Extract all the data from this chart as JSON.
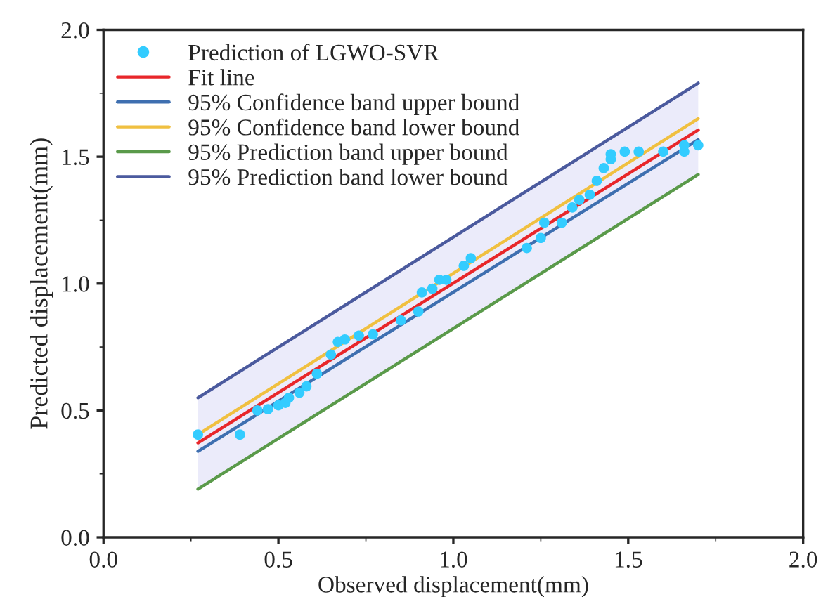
{
  "chart_data": {
    "type": "scatter",
    "xlabel": "Observed displacement(mm)",
    "ylabel": "Predicted displacement(mm)",
    "xlim": [
      0,
      2
    ],
    "ylim": [
      0,
      2
    ],
    "xticks": [
      {
        "value": 0,
        "label": "0.0"
      },
      {
        "value": 0.5,
        "label": "0.5"
      },
      {
        "value": 1,
        "label": "1.0"
      },
      {
        "value": 1.5,
        "label": "1.5"
      },
      {
        "value": 2,
        "label": "2.0"
      }
    ],
    "yticks": [
      {
        "value": 0,
        "label": "0.0"
      },
      {
        "value": 0.5,
        "label": "0.5"
      },
      {
        "value": 1,
        "label": "1.0"
      },
      {
        "value": 1.5,
        "label": "1.5"
      },
      {
        "value": 2,
        "label": "2.0"
      }
    ],
    "grid": false,
    "legend": "top left",
    "series": [
      {
        "name": "Prediction of LGWO-SVR",
        "color": "#33ccff",
        "marker": "circle",
        "x": [
          0.27,
          0.39,
          0.44,
          0.47,
          0.5,
          0.52,
          0.53,
          0.56,
          0.58,
          0.61,
          0.65,
          0.67,
          0.69,
          0.73,
          0.77,
          0.85,
          0.9,
          0.91,
          0.94,
          0.96,
          0.98,
          1.03,
          1.05,
          1.21,
          1.25,
          1.26,
          1.31,
          1.34,
          1.36,
          1.39,
          1.41,
          1.43,
          1.45,
          1.45,
          1.49,
          1.53,
          1.6,
          1.66,
          1.66,
          1.7
        ],
        "values": [
          0.405,
          0.405,
          0.5,
          0.505,
          0.52,
          0.53,
          0.55,
          0.57,
          0.595,
          0.645,
          0.72,
          0.77,
          0.78,
          0.795,
          0.8,
          0.855,
          0.89,
          0.965,
          0.98,
          1.015,
          1.015,
          1.07,
          1.1,
          1.14,
          1.18,
          1.24,
          1.24,
          1.3,
          1.33,
          1.35,
          1.405,
          1.455,
          1.49,
          1.51,
          1.52,
          1.52,
          1.52,
          1.52,
          1.545,
          1.545
        ]
      },
      {
        "type": "line",
        "name": "Fit line",
        "color": "#e8262a",
        "x": [
          0.27,
          1.7
        ],
        "values": [
          0.372,
          1.605
        ],
        "lower": [
          0.19,
          1.43
        ],
        "upper": [
          0.55,
          1.79
        ]
      },
      {
        "type": "line",
        "name": "95% Confidence band upper bound",
        "color": "#3e6fb0",
        "x": [
          0.27,
          1.7
        ],
        "values": [
          0.339,
          1.567
        ]
      },
      {
        "type": "line",
        "name": "95% Confidence band lower bound",
        "color": "#f0c040",
        "x": [
          0.27,
          1.7
        ],
        "values": [
          0.405,
          1.65
        ]
      },
      {
        "type": "line",
        "name": "95% Prediction band upper bound",
        "color": "#5a9a4a",
        "x": [
          0.27,
          1.7
        ],
        "values": [
          0.19,
          1.43
        ]
      },
      {
        "type": "line",
        "name": "95% Prediction band lower bound",
        "color": "#4b5a9e",
        "x": [
          0.27,
          1.7
        ],
        "values": [
          0.55,
          1.79
        ]
      }
    ]
  }
}
